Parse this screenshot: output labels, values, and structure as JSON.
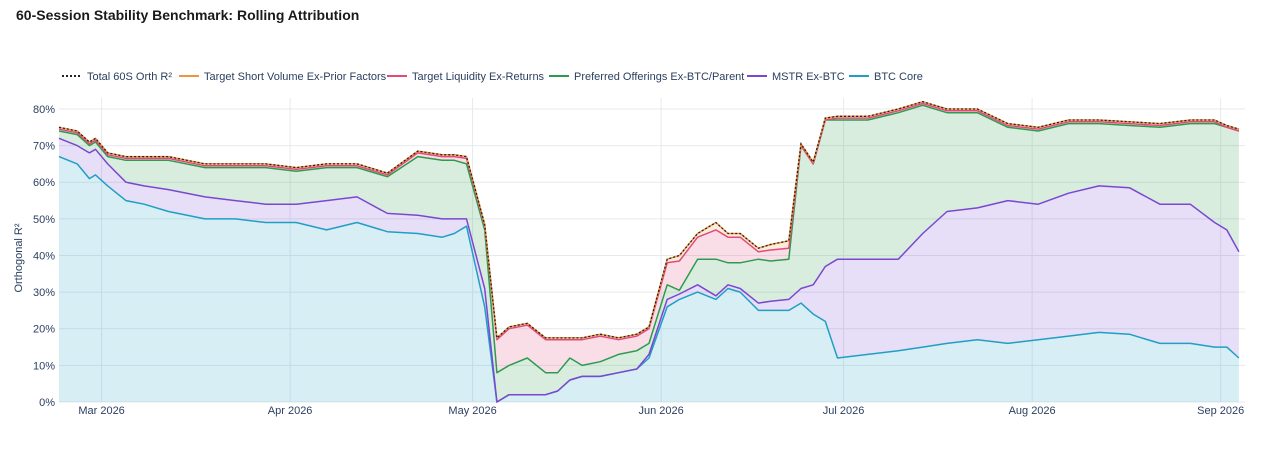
{
  "title": "60-Session Stability Benchmark: Rolling Attribution",
  "chart_data": {
    "type": "area",
    "ylabel": "Orthogonal R²",
    "xlabel": "",
    "ylim": [
      0,
      0.83
    ],
    "xlim": [
      "2026-02-22",
      "2026-09-05"
    ],
    "ytick_labels": [
      "0%",
      "10%",
      "20%",
      "30%",
      "40%",
      "50%",
      "60%",
      "70%",
      "80%"
    ],
    "xtick_labels": [
      "Mar 2026",
      "Apr 2026",
      "May 2026",
      "Jun 2026",
      "Jul 2026",
      "Aug 2026",
      "Sep 2026"
    ],
    "xtick_dates": [
      "2026-03-01",
      "2026-04-01",
      "2026-05-01",
      "2026-06-01",
      "2026-07-01",
      "2026-08-01",
      "2026-09-01"
    ],
    "grid": true,
    "legend_position": "top-left",
    "stacked": true,
    "x": [
      "2026-02-22",
      "2026-02-25",
      "2026-02-27",
      "2026-02-28",
      "2026-03-02",
      "2026-03-05",
      "2026-03-08",
      "2026-03-12",
      "2026-03-18",
      "2026-03-23",
      "2026-03-28",
      "2026-04-02",
      "2026-04-07",
      "2026-04-12",
      "2026-04-17",
      "2026-04-22",
      "2026-04-26",
      "2026-04-28",
      "2026-04-30",
      "2026-05-03",
      "2026-05-05",
      "2026-05-07",
      "2026-05-10",
      "2026-05-13",
      "2026-05-15",
      "2026-05-17",
      "2026-05-19",
      "2026-05-22",
      "2026-05-25",
      "2026-05-28",
      "2026-05-30",
      "2026-06-02",
      "2026-06-04",
      "2026-06-07",
      "2026-06-10",
      "2026-06-12",
      "2026-06-14",
      "2026-06-17",
      "2026-06-19",
      "2026-06-22",
      "2026-06-24",
      "2026-06-26",
      "2026-06-28",
      "2026-06-30",
      "2026-07-05",
      "2026-07-10",
      "2026-07-14",
      "2026-07-18",
      "2026-07-23",
      "2026-07-28",
      "2026-08-02",
      "2026-08-07",
      "2026-08-12",
      "2026-08-17",
      "2026-08-22",
      "2026-08-27",
      "2026-08-31",
      "2026-09-02",
      "2026-09-04"
    ],
    "series": [
      {
        "name": "BTC Core",
        "color": "#1f9fc4",
        "values": [
          0.67,
          0.65,
          0.61,
          0.62,
          0.59,
          0.55,
          0.54,
          0.52,
          0.5,
          0.5,
          0.49,
          0.49,
          0.47,
          0.49,
          0.465,
          0.46,
          0.45,
          0.46,
          0.48,
          0.26,
          0.0,
          0.02,
          0.02,
          0.02,
          0.03,
          0.06,
          0.07,
          0.07,
          0.08,
          0.09,
          0.12,
          0.26,
          0.28,
          0.3,
          0.28,
          0.31,
          0.3,
          0.25,
          0.25,
          0.25,
          0.27,
          0.24,
          0.22,
          0.12,
          0.13,
          0.14,
          0.15,
          0.16,
          0.17,
          0.16,
          0.17,
          0.18,
          0.19,
          0.185,
          0.16,
          0.16,
          0.15,
          0.15,
          0.12
        ]
      },
      {
        "name": "MSTR Ex-BTC",
        "color": "#7b47d1",
        "values": [
          0.05,
          0.05,
          0.07,
          0.07,
          0.06,
          0.05,
          0.05,
          0.06,
          0.06,
          0.05,
          0.05,
          0.05,
          0.08,
          0.07,
          0.05,
          0.05,
          0.05,
          0.04,
          0.02,
          0.05,
          0.0,
          0.0,
          0.0,
          0.0,
          0.0,
          0.0,
          0.0,
          0.0,
          0.0,
          0.0,
          0.01,
          0.02,
          0.015,
          0.02,
          0.01,
          0.01,
          0.01,
          0.02,
          0.025,
          0.03,
          0.04,
          0.08,
          0.15,
          0.27,
          0.26,
          0.25,
          0.31,
          0.36,
          0.36,
          0.39,
          0.37,
          0.39,
          0.4,
          0.4,
          0.38,
          0.38,
          0.34,
          0.32,
          0.29
        ]
      },
      {
        "name": "Preferred Offerings Ex-BTC/Parent",
        "color": "#2e9a50",
        "values": [
          0.02,
          0.03,
          0.02,
          0.02,
          0.02,
          0.06,
          0.07,
          0.08,
          0.08,
          0.09,
          0.1,
          0.09,
          0.09,
          0.08,
          0.1,
          0.16,
          0.16,
          0.16,
          0.15,
          0.16,
          0.08,
          0.08,
          0.1,
          0.06,
          0.05,
          0.06,
          0.03,
          0.04,
          0.05,
          0.05,
          0.03,
          0.04,
          0.01,
          0.07,
          0.1,
          0.06,
          0.07,
          0.12,
          0.11,
          0.11,
          0.39,
          0.33,
          0.4,
          0.38,
          0.38,
          0.4,
          0.35,
          0.27,
          0.26,
          0.2,
          0.2,
          0.19,
          0.17,
          0.17,
          0.21,
          0.22,
          0.27,
          0.28,
          0.33
        ]
      },
      {
        "name": "Target Liquidity Ex-Returns",
        "color": "#e5497c",
        "values": [
          0.005,
          0.005,
          0.005,
          0.005,
          0.005,
          0.005,
          0.005,
          0.005,
          0.005,
          0.005,
          0.005,
          0.005,
          0.005,
          0.005,
          0.005,
          0.01,
          0.01,
          0.01,
          0.015,
          0.01,
          0.09,
          0.1,
          0.09,
          0.09,
          0.09,
          0.05,
          0.07,
          0.07,
          0.04,
          0.04,
          0.04,
          0.06,
          0.08,
          0.06,
          0.08,
          0.07,
          0.07,
          0.02,
          0.03,
          0.03,
          0.0,
          0.0,
          0.0,
          0.005,
          0.005,
          0.005,
          0.005,
          0.005,
          0.005,
          0.005,
          0.005,
          0.005,
          0.005,
          0.005,
          0.005,
          0.005,
          0.005,
          0.0,
          0.0
        ]
      },
      {
        "name": "Target Short Volume Ex-Prior Factors",
        "color": "#f0953a",
        "values": [
          0.005,
          0.005,
          0.005,
          0.005,
          0.005,
          0.005,
          0.005,
          0.005,
          0.005,
          0.005,
          0.005,
          0.005,
          0.005,
          0.005,
          0.005,
          0.005,
          0.005,
          0.005,
          0.005,
          0.005,
          0.005,
          0.005,
          0.005,
          0.005,
          0.005,
          0.005,
          0.005,
          0.005,
          0.005,
          0.005,
          0.005,
          0.01,
          0.015,
          0.01,
          0.02,
          0.01,
          0.01,
          0.01,
          0.015,
          0.02,
          0.005,
          0.005,
          0.005,
          0.005,
          0.005,
          0.005,
          0.005,
          0.005,
          0.005,
          0.005,
          0.005,
          0.005,
          0.005,
          0.005,
          0.005,
          0.005,
          0.005,
          0.005,
          0.005
        ]
      }
    ],
    "total": {
      "name": "Total 60S Orth R²",
      "color": "#222222",
      "style": "dotted"
    },
    "legend_order": [
      "Total 60S Orth R²",
      "Target Short Volume Ex-Prior Factors",
      "Target Liquidity Ex-Returns",
      "Preferred Offerings Ex-BTC/Parent",
      "MSTR Ex-BTC",
      "BTC Core"
    ]
  }
}
